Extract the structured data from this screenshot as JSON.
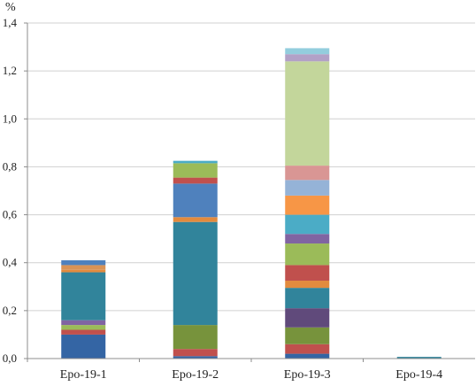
{
  "chart_data": {
    "type": "bar",
    "stacked": true,
    "ylabel": "%",
    "ylim": [
      0,
      1.4
    ],
    "y_ticks": [
      0,
      0.2,
      0.4,
      0.6,
      0.8,
      1.0,
      1.2,
      1.4
    ],
    "y_tick_labels": [
      "0,0",
      "0,2",
      "0,4",
      "0,6",
      "0,8",
      "1,0",
      "1,2",
      "1,4"
    ],
    "grid": true,
    "legend": "none",
    "categories": [
      "Epo-19-1",
      "Epo-19-2",
      "Epo-19-3",
      "Epo-19-4"
    ],
    "bars": [
      {
        "category": "Epo-19-1",
        "segments": [
          {
            "value": 0.1,
            "color": "#3465a4"
          },
          {
            "value": 0.02,
            "color": "#c0504d"
          },
          {
            "value": 0.02,
            "color": "#9bbb59"
          },
          {
            "value": 0.02,
            "color": "#8064a2"
          },
          {
            "value": 0.2,
            "color": "#31849b"
          },
          {
            "value": 0.01,
            "color": "#e38b3e"
          },
          {
            "value": 0.02,
            "color": "#d99356"
          },
          {
            "value": 0.02,
            "color": "#4f81bd"
          }
        ]
      },
      {
        "category": "Epo-19-2",
        "segments": [
          {
            "value": 0.01,
            "color": "#3465a4"
          },
          {
            "value": 0.03,
            "color": "#c0504d"
          },
          {
            "value": 0.1,
            "color": "#77933c"
          },
          {
            "value": 0.43,
            "color": "#31849b"
          },
          {
            "value": 0.02,
            "color": "#e38b3e"
          },
          {
            "value": 0.14,
            "color": "#4f81bd"
          },
          {
            "value": 0.025,
            "color": "#c0504d"
          },
          {
            "value": 0.06,
            "color": "#9bbb59"
          },
          {
            "value": 0.01,
            "color": "#4bacc6"
          }
        ]
      },
      {
        "category": "Epo-19-3",
        "segments": [
          {
            "value": 0.02,
            "color": "#3465a4"
          },
          {
            "value": 0.04,
            "color": "#c0504d"
          },
          {
            "value": 0.07,
            "color": "#77933c"
          },
          {
            "value": 0.08,
            "color": "#604a7b"
          },
          {
            "value": 0.085,
            "color": "#31849b"
          },
          {
            "value": 0.03,
            "color": "#e38b3e"
          },
          {
            "value": 0.065,
            "color": "#c0504d"
          },
          {
            "value": 0.09,
            "color": "#9bbb59"
          },
          {
            "value": 0.04,
            "color": "#8064a2"
          },
          {
            "value": 0.08,
            "color": "#4bacc6"
          },
          {
            "value": 0.08,
            "color": "#f79646"
          },
          {
            "value": 0.065,
            "color": "#95b3d7"
          },
          {
            "value": 0.06,
            "color": "#d99694"
          },
          {
            "value": 0.435,
            "color": "#c3d69b"
          },
          {
            "value": 0.03,
            "color": "#b2a1c7"
          },
          {
            "value": 0.025,
            "color": "#93cddd"
          }
        ]
      },
      {
        "category": "Epo-19-4",
        "segments": [
          {
            "value": 0.007,
            "color": "#31849b"
          }
        ]
      }
    ]
  }
}
